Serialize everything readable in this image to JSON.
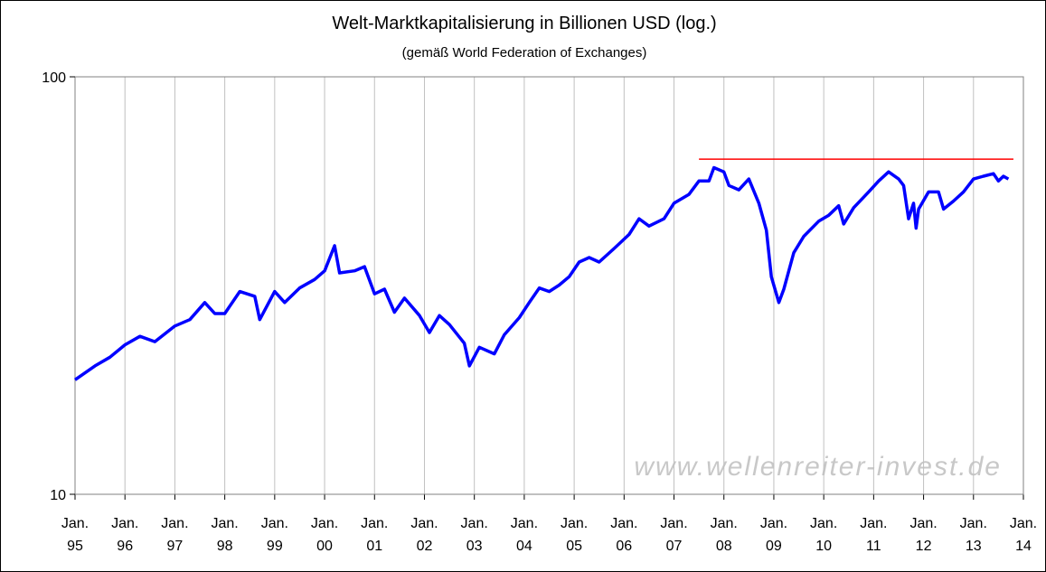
{
  "chart_data": {
    "type": "line",
    "title": "Welt-Marktkapitalisierung in Billionen USD (log.)",
    "subtitle": "(gemäß World Federation of Exchanges)",
    "watermark": "www.wellenreiter-invest.de",
    "log_y": true,
    "grid_x": true,
    "xlim": [
      1995,
      2014
    ],
    "ylim": [
      10,
      100
    ],
    "yticks": [
      10,
      100
    ],
    "xticks": [
      {
        "value": 1995,
        "label": "Jan.\n95"
      },
      {
        "value": 1996,
        "label": "Jan.\n96"
      },
      {
        "value": 1997,
        "label": "Jan.\n97"
      },
      {
        "value": 1998,
        "label": "Jan.\n98"
      },
      {
        "value": 1999,
        "label": "Jan.\n99"
      },
      {
        "value": 2000,
        "label": "Jan.\n00"
      },
      {
        "value": 2001,
        "label": "Jan.\n01"
      },
      {
        "value": 2002,
        "label": "Jan.\n02"
      },
      {
        "value": 2003,
        "label": "Jan.\n03"
      },
      {
        "value": 2004,
        "label": "Jan.\n04"
      },
      {
        "value": 2005,
        "label": "Jan.\n05"
      },
      {
        "value": 2006,
        "label": "Jan.\n06"
      },
      {
        "value": 2007,
        "label": "Jan.\n07"
      },
      {
        "value": 2008,
        "label": "Jan.\n08"
      },
      {
        "value": 2009,
        "label": "Jan.\n09"
      },
      {
        "value": 2010,
        "label": "Jan.\n10"
      },
      {
        "value": 2011,
        "label": "Jan.\n11"
      },
      {
        "value": 2012,
        "label": "Jan.\n12"
      },
      {
        "value": 2013,
        "label": "Jan.\n13"
      },
      {
        "value": 2014,
        "label": "Jan.\n14"
      }
    ],
    "series": [
      {
        "color": "#0000ff",
        "x": [
          1995.0,
          1995.4,
          1995.7,
          1996.0,
          1996.3,
          1996.6,
          1997.0,
          1997.3,
          1997.6,
          1997.8,
          1998.0,
          1998.3,
          1998.6,
          1998.7,
          1999.0,
          1999.2,
          1999.5,
          1999.8,
          2000.0,
          2000.2,
          2000.3,
          2000.6,
          2000.8,
          2001.0,
          2001.2,
          2001.4,
          2001.6,
          2001.9,
          2002.1,
          2002.3,
          2002.5,
          2002.8,
          2002.9,
          2003.1,
          2003.4,
          2003.6,
          2003.9,
          2004.1,
          2004.3,
          2004.5,
          2004.7,
          2004.9,
          2005.1,
          2005.3,
          2005.5,
          2005.8,
          2006.1,
          2006.3,
          2006.5,
          2006.8,
          2007.0,
          2007.3,
          2007.5,
          2007.7,
          2007.8,
          2008.0,
          2008.1,
          2008.3,
          2008.5,
          2008.7,
          2008.85,
          2008.95,
          2009.1,
          2009.2,
          2009.4,
          2009.6,
          2009.9,
          2010.1,
          2010.3,
          2010.4,
          2010.6,
          2010.9,
          2011.1,
          2011.3,
          2011.5,
          2011.6,
          2011.7,
          2011.8,
          2011.85,
          2011.9,
          2012.1,
          2012.3,
          2012.4,
          2012.6,
          2012.8,
          2013.0,
          2013.2,
          2013.4,
          2013.5,
          2013.6,
          2013.7
        ],
        "values": [
          18.8,
          20.3,
          21.3,
          22.8,
          23.9,
          23.2,
          25.3,
          26.2,
          28.8,
          27.1,
          27.1,
          30.6,
          29.8,
          26.2,
          30.6,
          28.8,
          31.2,
          32.7,
          34.3,
          39.4,
          33.9,
          34.3,
          35.1,
          30.2,
          31.0,
          27.3,
          29.5,
          26.8,
          24.4,
          26.8,
          25.5,
          23.0,
          20.3,
          22.5,
          21.7,
          24.1,
          26.5,
          28.8,
          31.2,
          30.6,
          31.7,
          33.2,
          36.0,
          36.9,
          36.0,
          38.8,
          41.9,
          45.7,
          43.9,
          45.7,
          49.8,
          52.3,
          56.3,
          56.3,
          60.6,
          59.2,
          54.9,
          53.6,
          56.9,
          49.8,
          42.9,
          33.2,
          28.8,
          31.0,
          37.9,
          41.5,
          45.1,
          46.6,
          49.1,
          44.4,
          48.6,
          53.0,
          56.3,
          59.2,
          56.9,
          54.9,
          45.7,
          49.8,
          43.4,
          48.2,
          53.0,
          53.0,
          48.2,
          50.4,
          53.0,
          56.9,
          57.8,
          58.6,
          56.3,
          57.8,
          56.9
        ]
      }
    ],
    "reference_line": {
      "value": 63.5,
      "x": [
        2007.5,
        2013.8
      ],
      "color": "#ff0000"
    }
  }
}
